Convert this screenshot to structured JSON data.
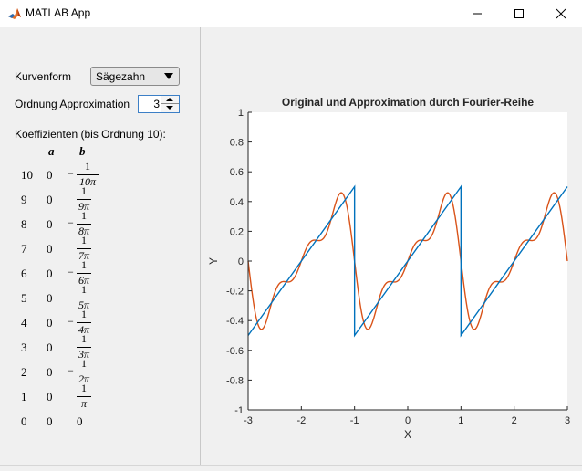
{
  "window": {
    "title": "MATLAB App",
    "icon": "matlab-icon",
    "controls": [
      "minimize-icon",
      "maximize-icon",
      "close-icon"
    ]
  },
  "controls": {
    "waveform_label": "Kurvenform",
    "waveform_value": "Sägezahn",
    "order_label": "Ordnung Approximation",
    "order_value": "3"
  },
  "coefficients": {
    "label": "Koeffizienten (bis Ordnung 10):",
    "header_a": "a",
    "header_b": "b",
    "rows": [
      {
        "n": "10",
        "a": "0",
        "b_sign": "−",
        "b_num": "1",
        "b_den": "10π"
      },
      {
        "n": "9",
        "a": "0",
        "b_sign": "",
        "b_num": "1",
        "b_den": "9π"
      },
      {
        "n": "8",
        "a": "0",
        "b_sign": "−",
        "b_num": "1",
        "b_den": "8π"
      },
      {
        "n": "7",
        "a": "0",
        "b_sign": "",
        "b_num": "1",
        "b_den": "7π"
      },
      {
        "n": "6",
        "a": "0",
        "b_sign": "−",
        "b_num": "1",
        "b_den": "6π"
      },
      {
        "n": "5",
        "a": "0",
        "b_sign": "",
        "b_num": "1",
        "b_den": "5π"
      },
      {
        "n": "4",
        "a": "0",
        "b_sign": "−",
        "b_num": "1",
        "b_den": "4π"
      },
      {
        "n": "3",
        "a": "0",
        "b_sign": "",
        "b_num": "1",
        "b_den": "3π"
      },
      {
        "n": "2",
        "a": "0",
        "b_sign": "−",
        "b_num": "1",
        "b_den": "2π"
      },
      {
        "n": "1",
        "a": "0",
        "b_sign": "",
        "b_num": "1",
        "b_den": "π"
      },
      {
        "n": "0",
        "a": "0",
        "b_sign": "",
        "b_num": "0",
        "b_den": ""
      }
    ]
  },
  "chart_data": {
    "type": "line",
    "title": "Original und Approximation durch Fourier-Reihe",
    "xlabel": "X",
    "ylabel": "Y",
    "xlim": [
      -3,
      3
    ],
    "ylim": [
      -1,
      1
    ],
    "xticks": [
      "-3",
      "-2",
      "-1",
      "0",
      "1",
      "2",
      "3"
    ],
    "yticks": [
      "-1",
      "-0.8",
      "-0.6",
      "-0.4",
      "-0.2",
      "0",
      "0.2",
      "0.4",
      "0.6",
      "0.8",
      "1"
    ],
    "grid": false,
    "series": [
      {
        "color": "#0072bd",
        "kind": "sawtooth",
        "period": 2,
        "amplitude": 0.5
      },
      {
        "color": "#d95319",
        "kind": "fourier",
        "order": 3
      }
    ]
  }
}
